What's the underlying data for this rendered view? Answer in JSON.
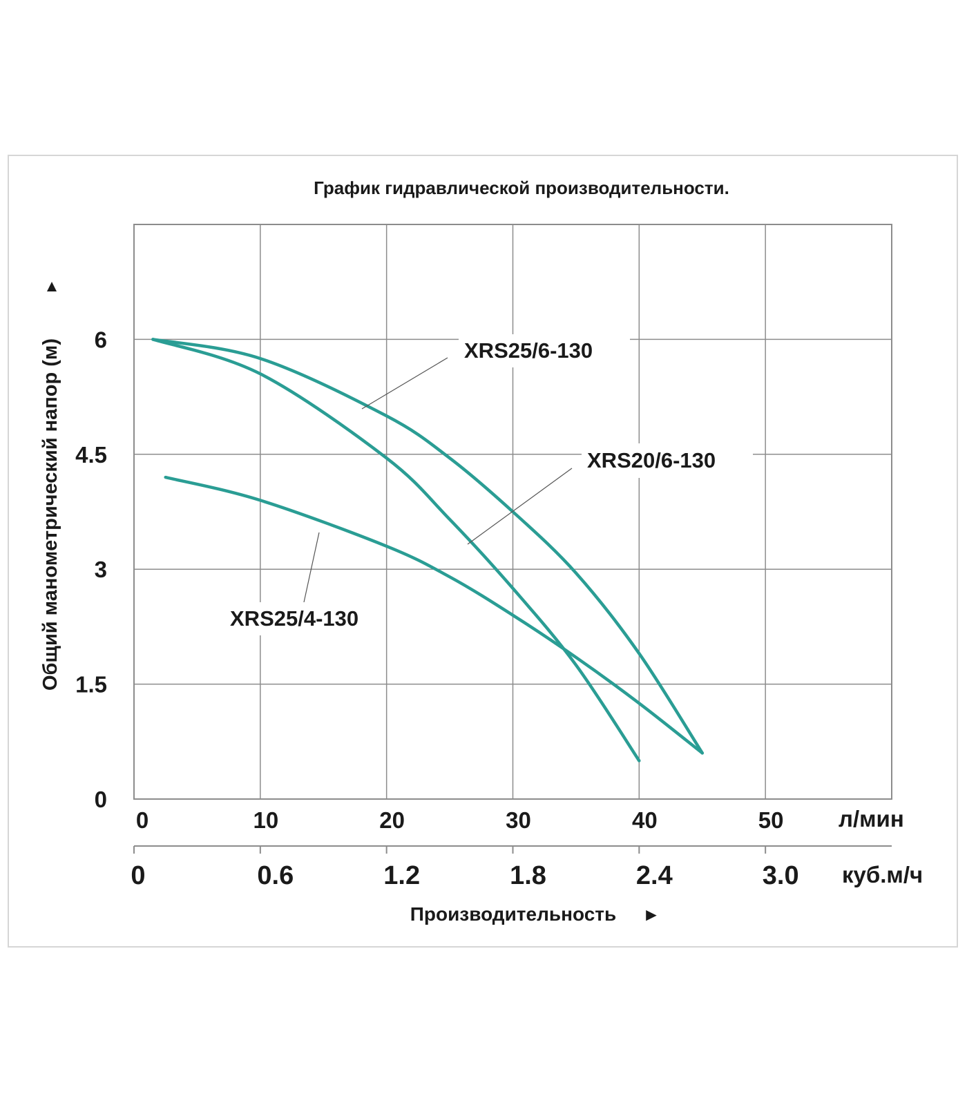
{
  "chart_data": {
    "type": "line",
    "title": "График гидравлической производительности.",
    "ylabel": "Общий манометрический напор (м)",
    "ylabel_arrow": "▲",
    "xlabel": "Производительность",
    "xlabel_arrow": "►",
    "x_unit_primary": "л/мин",
    "x_unit_secondary": "куб.м/ч",
    "xlim": [
      0,
      60
    ],
    "ylim": [
      0,
      7.5
    ],
    "x_ticks": [
      "0",
      "10",
      "20",
      "30",
      "40",
      "50"
    ],
    "x_ticks_secondary": [
      "0",
      "0.6",
      "1.2",
      "1.8",
      "2.4",
      "3.0"
    ],
    "y_ticks": [
      "0",
      "1.5",
      "3",
      "4.5",
      "6"
    ],
    "grid": true,
    "colors": {
      "curve": "#2a9d94",
      "grid": "#8c8c8c",
      "axis": "#8c8c8c",
      "frame": "#d6d6d6"
    },
    "series": [
      {
        "name": "XRS25/6-130",
        "x": [
          1.5,
          10,
          20,
          25,
          30,
          35,
          40,
          45
        ],
        "y": [
          6.0,
          5.75,
          5.0,
          4.45,
          3.75,
          2.95,
          1.9,
          0.6
        ]
      },
      {
        "name": "XRS20/6-130",
        "x": [
          1.5,
          10,
          20,
          25,
          30,
          35,
          40
        ],
        "y": [
          6.0,
          5.55,
          4.45,
          3.65,
          2.75,
          1.75,
          0.5
        ]
      },
      {
        "name": "XRS25/4-130",
        "x": [
          2.5,
          10,
          20,
          25,
          30,
          35,
          40,
          45
        ],
        "y": [
          4.2,
          3.9,
          3.3,
          2.9,
          2.4,
          1.85,
          1.25,
          0.6
        ]
      }
    ]
  }
}
